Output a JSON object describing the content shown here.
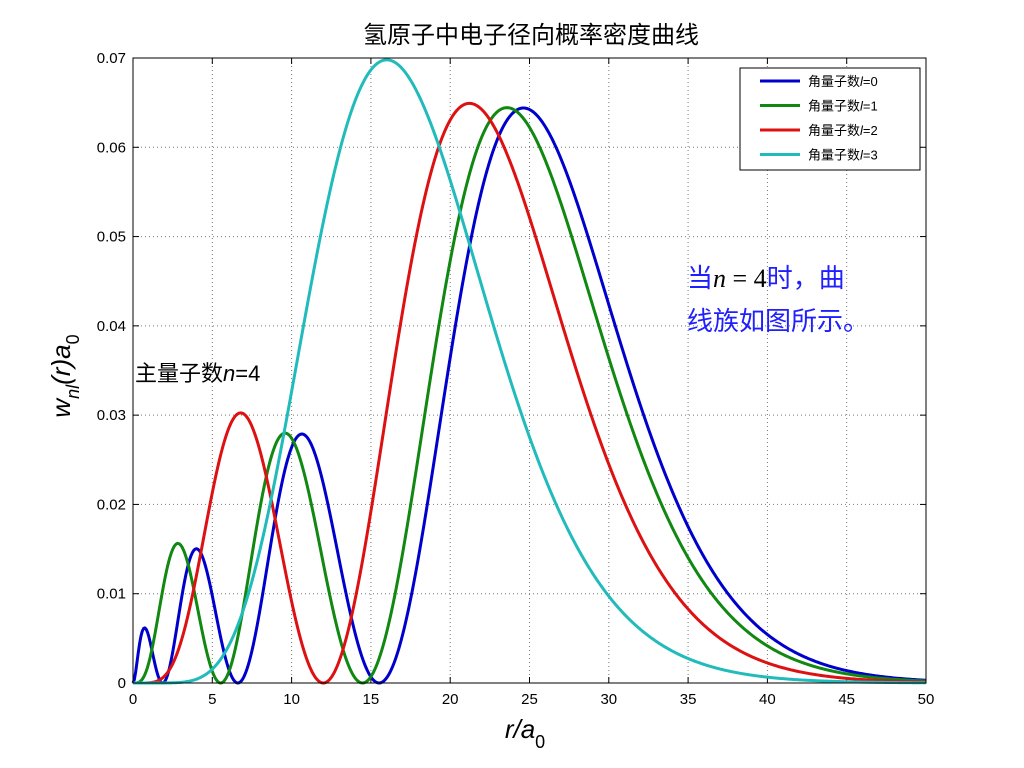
{
  "chart_data": {
    "type": "line",
    "title": "氢原子中电子径向概率密度曲线",
    "xlabel_main": "r/a",
    "xlabel_sub": "0",
    "ylabel_main": "w",
    "ylabel_sub1": "nl",
    "ylabel_mid": "(r)a",
    "ylabel_sub2": "0",
    "xlim": [
      0,
      50
    ],
    "ylim": [
      0,
      0.07
    ],
    "xticks": [
      "0",
      "5",
      "10",
      "15",
      "20",
      "25",
      "30",
      "35",
      "40",
      "45",
      "50"
    ],
    "yticks": [
      "0",
      "0.01",
      "0.02",
      "0.03",
      "0.04",
      "0.05",
      "0.06",
      "0.07"
    ],
    "grid": true,
    "legend_position": "top-right",
    "series": [
      {
        "name": "角量子数l=0",
        "legend_prefix": "角量子数",
        "legend_var": "l",
        "legend_suffix": "=0",
        "color": "#0000cc",
        "l": 0
      },
      {
        "name": "角量子数l=1",
        "legend_prefix": "角量子数",
        "legend_var": "l",
        "legend_suffix": "=1",
        "color": "#118811",
        "l": 1
      },
      {
        "name": "角量子数l=2",
        "legend_prefix": "角量子数",
        "legend_var": "l",
        "legend_suffix": "=2",
        "color": "#dd1111",
        "l": 2
      },
      {
        "name": "角量子数l=3",
        "legend_prefix": "角量子数",
        "legend_var": "l",
        "legend_suffix": "=3",
        "color": "#22bbbb",
        "l": 3
      }
    ],
    "annotations": {
      "n_label_prefix": "主量子数",
      "n_label_var": "n",
      "n_label_suffix": "=4",
      "note_line1_a": "当",
      "note_line1_b": "n",
      "note_line1_c": " = 4",
      "note_line1_d": "时，曲",
      "note_line2": "线族如图所示。"
    }
  }
}
